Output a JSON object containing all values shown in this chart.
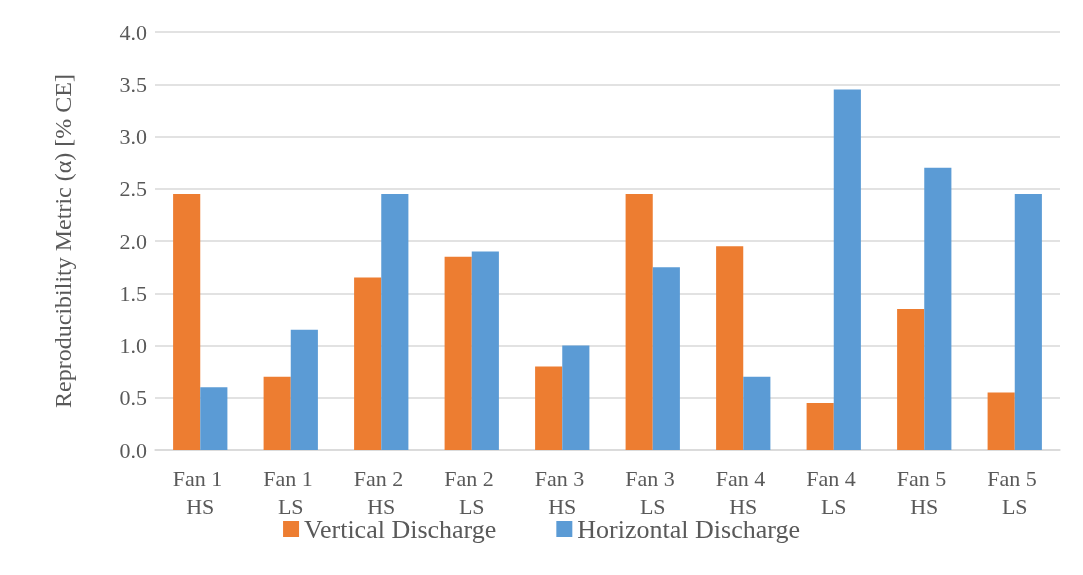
{
  "chart_data": {
    "type": "bar",
    "ylabel": "Reproducibility Metric (α) [% CE]",
    "categories": [
      "Fan 1 HS",
      "Fan 1 LS",
      "Fan 2 HS",
      "Fan 2 LS",
      "Fan 3 HS",
      "Fan 3 LS",
      "Fan 4 HS",
      "Fan 4 LS",
      "Fan 5 HS",
      "Fan 5 LS"
    ],
    "series": [
      {
        "name": "Vertical Discharge",
        "color": "#ed7d31",
        "values": [
          2.45,
          0.7,
          1.65,
          1.85,
          0.8,
          2.45,
          1.95,
          0.45,
          1.35,
          0.55
        ]
      },
      {
        "name": "Horizontal Discharge",
        "color": "#5b9bd5",
        "values": [
          0.6,
          1.15,
          2.45,
          1.9,
          1.0,
          1.75,
          0.7,
          3.45,
          2.7,
          2.45
        ]
      }
    ],
    "ylim": [
      0,
      4
    ],
    "yticks": [
      {
        "value": 0,
        "label": "0.0"
      },
      0.5,
      {
        "value": 1,
        "label": "1.0"
      },
      1.5,
      {
        "value": 2,
        "label": "2.0"
      },
      2.5,
      {
        "value": 3,
        "label": "3.0"
      },
      3.5,
      {
        "value": 4,
        "label": "4.0"
      }
    ],
    "grid": "y",
    "legend": "bottom"
  }
}
